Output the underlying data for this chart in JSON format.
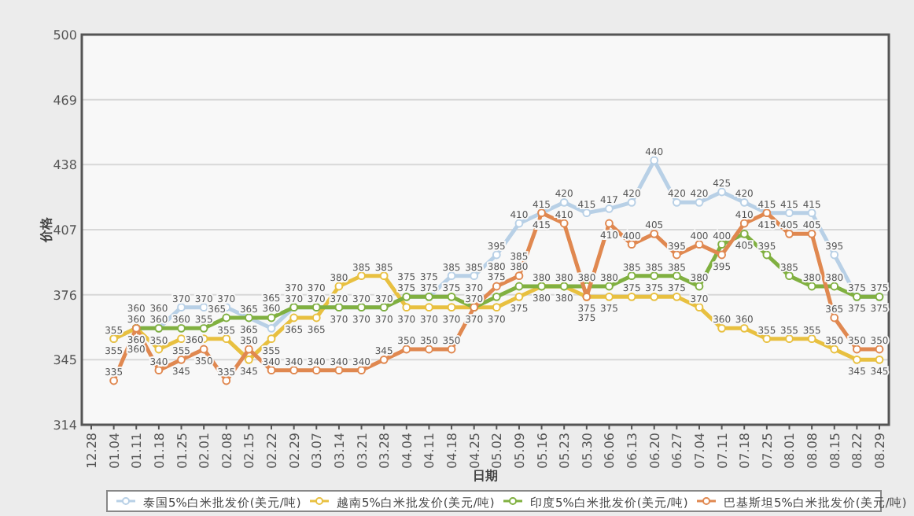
{
  "chart_data": {
    "type": "line",
    "xlabel": "日期",
    "ylabel": "价格",
    "categories": [
      "12.28",
      "01.04",
      "01.11",
      "01.18",
      "01.25",
      "02.01",
      "02.08",
      "02.15",
      "02.22",
      "02.29",
      "03.07",
      "03.14",
      "03.21",
      "03.28",
      "04.04",
      "04.11",
      "04.18",
      "04.25",
      "05.02",
      "05.09",
      "05.16",
      "05.23",
      "05.30",
      "06.06",
      "06.13",
      "06.20",
      "06.27",
      "07.04",
      "07.11",
      "07.18",
      "07.25",
      "08.01",
      "08.08",
      "08.15",
      "08.22",
      "08.29"
    ],
    "series": [
      {
        "name": "泰国5%白米批发价(美元/吨)",
        "color": "#b8d0e6",
        "values": [
          null,
          355,
          360,
          360,
          370,
          370,
          370,
          365,
          360,
          370,
          370,
          370,
          370,
          370,
          375,
          375,
          385,
          385,
          395,
          410,
          415,
          420,
          415,
          417,
          420,
          440,
          420,
          420,
          425,
          420,
          415,
          415,
          415,
          395,
          375,
          375
        ]
      },
      {
        "name": "越南5%白米批发价(美元/吨)",
        "color": "#e8c040",
        "values": [
          null,
          355,
          360,
          350,
          355,
          355,
          355,
          345,
          355,
          365,
          365,
          380,
          385,
          385,
          370,
          370,
          370,
          370,
          370,
          375,
          380,
          380,
          375,
          375,
          375,
          375,
          375,
          370,
          360,
          360,
          355,
          355,
          355,
          350,
          345,
          345
        ]
      },
      {
        "name": "印度5%白米批发价(美元/吨)",
        "color": "#80b040",
        "values": [
          null,
          null,
          360,
          360,
          360,
          360,
          365,
          365,
          365,
          370,
          370,
          370,
          370,
          370,
          375,
          375,
          375,
          370,
          375,
          380,
          380,
          380,
          380,
          380,
          385,
          385,
          385,
          380,
          400,
          405,
          395,
          385,
          380,
          380,
          375,
          375
        ]
      },
      {
        "name": "巴基斯坦5%白米批发价(美元/吨)",
        "color": "#e08850",
        "values": [
          null,
          335,
          360,
          340,
          345,
          350,
          335,
          350,
          340,
          340,
          340,
          340,
          340,
          345,
          350,
          350,
          350,
          370,
          380,
          385,
          415,
          410,
          375,
          410,
          400,
          405,
          395,
          400,
          395,
          410,
          415,
          405,
          405,
          365,
          350,
          350
        ]
      }
    ],
    "ylim": [
      314,
      500
    ],
    "yticks": [
      314,
      345,
      376,
      407,
      438,
      469,
      500
    ],
    "grid": "y",
    "legend": "bottom",
    "marker": "circle",
    "data_labels": true
  }
}
